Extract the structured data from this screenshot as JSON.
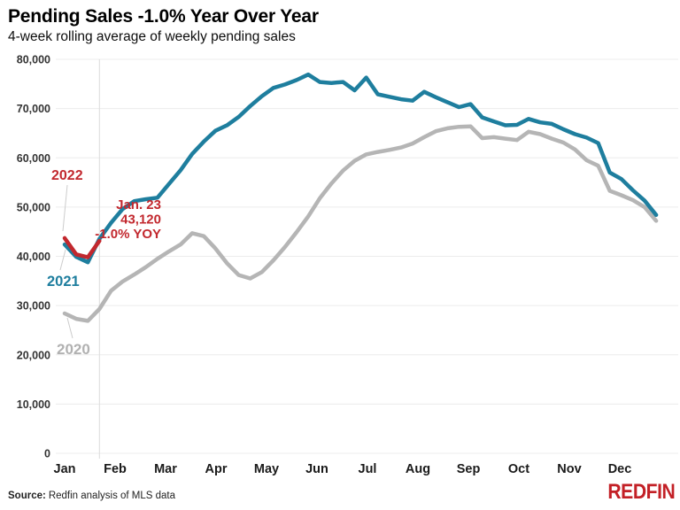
{
  "chart_data": {
    "type": "line",
    "title": "Pending Sales -1.0% Year Over Year",
    "subtitle": "4-week rolling average of weekly pending sales",
    "x_unit": "week of year (weekly points, Jan–Dec)",
    "months": [
      "Jan",
      "Feb",
      "Mar",
      "Apr",
      "May",
      "Jun",
      "Jul",
      "Aug",
      "Sep",
      "Oct",
      "Nov",
      "Dec"
    ],
    "ylim": [
      0,
      80000
    ],
    "ytick_step": 10000,
    "grid": true,
    "marker_week": 3,
    "series": [
      {
        "name": "2020",
        "color": "#b5b5b5",
        "label_color": "#b1b1b1",
        "values": [
          28400,
          27300,
          26900,
          29300,
          33000,
          34900,
          36300,
          37800,
          39500,
          41000,
          42400,
          44700,
          44100,
          41600,
          38600,
          36200,
          35500,
          36800,
          39200,
          41900,
          44900,
          48100,
          51800,
          54800,
          57400,
          59400,
          60700,
          61200,
          61600,
          62100,
          62900,
          64200,
          65400,
          66000,
          66300,
          66400,
          64000,
          64200,
          63900,
          63600,
          65300,
          64800,
          63900,
          63100,
          61700,
          59500,
          58400,
          53300,
          52400,
          51400,
          50000,
          47200
        ]
      },
      {
        "name": "2021",
        "color": "#1e7e9e",
        "label_color": "#1e7e9e",
        "values": [
          42400,
          39900,
          38800,
          43550,
          46800,
          49600,
          51200,
          51600,
          51900,
          54700,
          57500,
          60800,
          63300,
          65500,
          66600,
          68300,
          70500,
          72500,
          74200,
          74900,
          75800,
          76900,
          75400,
          75200,
          75400,
          73700,
          76300,
          72900,
          72400,
          71900,
          71600,
          73400,
          72300,
          71300,
          70300,
          70900,
          68200,
          67400,
          66600,
          66700,
          67900,
          67200,
          66900,
          65800,
          64800,
          64100,
          63000,
          57000,
          55700,
          53400,
          51300,
          48400
        ]
      },
      {
        "name": "2022",
        "color": "#c2282e",
        "label_color": "#c2282e",
        "values": [
          43700,
          40400,
          39800,
          43120
        ]
      }
    ],
    "annotation": {
      "lines": [
        "Jan. 23",
        "43,120",
        "-1.0% YOY"
      ],
      "color": "#c2282e"
    },
    "axis_text_color": "#333333",
    "grid_color": "#ececec",
    "marker_line_color": "#dcdcdc"
  },
  "footer": {
    "source_label": "Source:",
    "source_text": "Redfin analysis of MLS data",
    "logo_text": "REDFIN",
    "logo_color": "#c32026"
  }
}
